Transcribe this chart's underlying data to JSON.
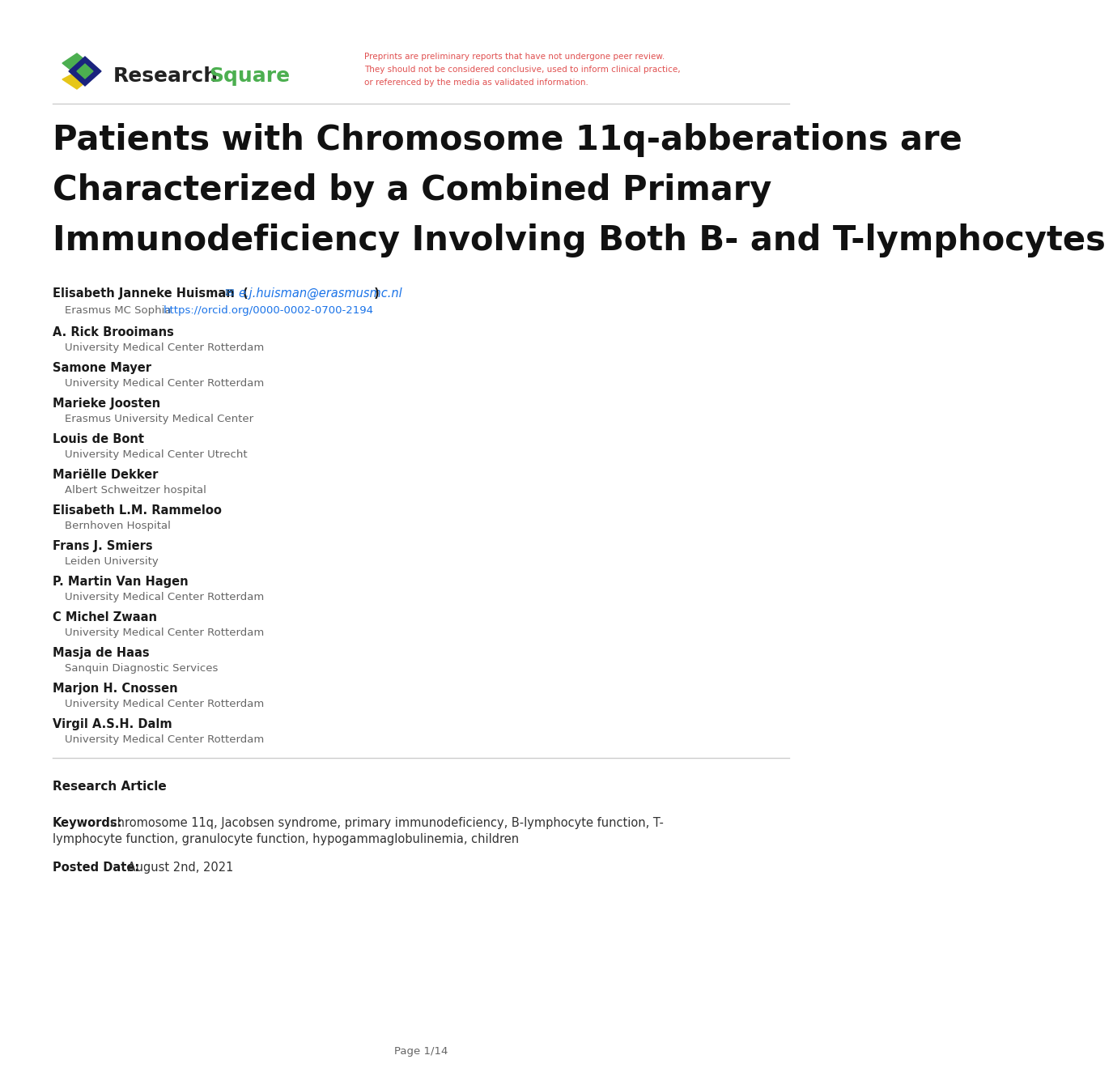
{
  "bg_color": "#ffffff",
  "title_lines": [
    "Patients with Chromosome 11q-abberations are",
    "Characterized by a Combined Primary",
    "Immunodeficiency Involving Both B- and T-lymphocytes"
  ],
  "disclaimer_lines": [
    "Preprints are preliminary reports that have not undergone peer review.",
    "They should not be considered conclusive, used to inform clinical practice,",
    "or referenced by the media as validated information."
  ],
  "disclaimer_color": "#e05050",
  "authors": [
    {
      "name": "Elisabeth Janneke Huisman",
      "email": "e.j.huisman@erasmusmc.nl",
      "affiliation": "Erasmus MC Sophia",
      "orcid": "https://orcid.org/0000-0002-0700-2194",
      "has_email": true
    },
    {
      "name": "A. Rick Brooimans",
      "affiliation": "University Medical Center Rotterdam",
      "has_email": false
    },
    {
      "name": "Samone Mayer",
      "affiliation": "University Medical Center Rotterdam",
      "has_email": false
    },
    {
      "name": "Marieke Joosten",
      "affiliation": "Erasmus University Medical Center",
      "has_email": false
    },
    {
      "name": "Louis de Bont",
      "affiliation": "University Medical Center Utrecht",
      "has_email": false
    },
    {
      "name": "Mariëlle Dekker",
      "affiliation": "Albert Schweitzer hospital",
      "has_email": false
    },
    {
      "name": "Elisabeth L.M. Rammeloo",
      "affiliation": "Bernhoven Hospital",
      "has_email": false
    },
    {
      "name": "Frans J. Smiers",
      "affiliation": "Leiden University",
      "has_email": false
    },
    {
      "name": "P. Martin Van Hagen",
      "affiliation": "University Medical Center Rotterdam",
      "has_email": false
    },
    {
      "name": "C Michel Zwaan",
      "affiliation": "University Medical Center Rotterdam",
      "has_email": false
    },
    {
      "name": "Masja de Haas",
      "affiliation": "Sanquin Diagnostic Services",
      "has_email": false
    },
    {
      "name": "Marjon H. Cnossen",
      "affiliation": "University Medical Center Rotterdam",
      "has_email": false
    },
    {
      "name": "Virgil A.S.H. Dalm",
      "affiliation": "University Medical Center Rotterdam",
      "has_email": false
    }
  ],
  "research_article_label": "Research Article",
  "keywords_label": "Keywords:",
  "keywords_line1": "chromosome 11q, Jacobsen syndrome, primary immunodeficiency, B-lymphocyte function, T-",
  "keywords_line2": "lymphocyte function, granulocyte function, hypogammaglobulinemia, children",
  "posted_date_label": "Posted Date:",
  "posted_date_text": "August 2nd, 2021",
  "page_label": "Page 1/14",
  "link_color": "#1a73e8",
  "author_name_color": "#1a1a1a",
  "affiliation_color": "#666666",
  "separator_color": "#cccccc",
  "text_color": "#1a1a1a"
}
